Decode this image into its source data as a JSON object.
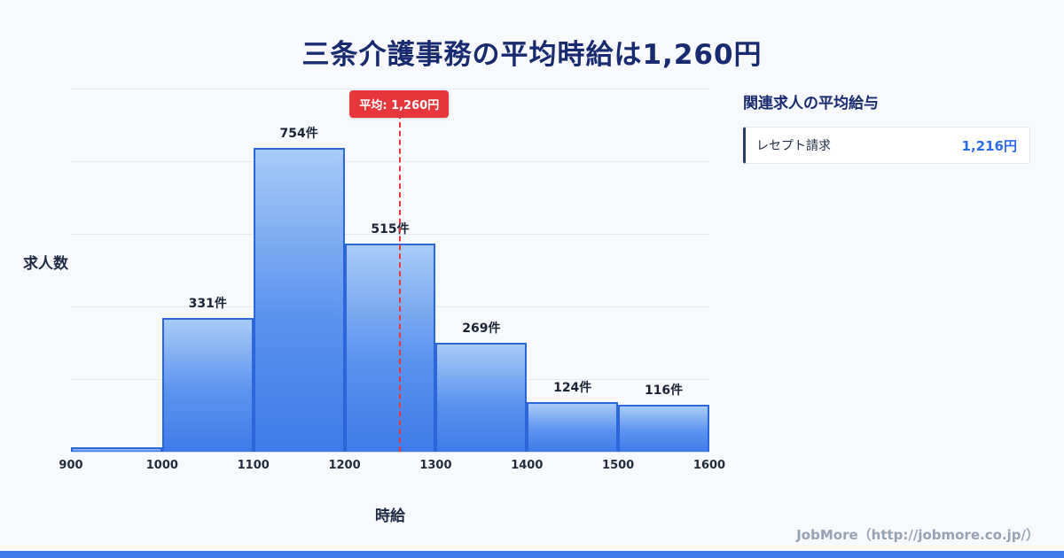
{
  "page": {
    "title": "三条介護事務の平均時給は1,260円",
    "footer": "JobMore（http://jobmore.co.jp/）",
    "accent_color": "#3d7ce8",
    "background_color": "#f7f9fc"
  },
  "chart_data": {
    "type": "bar",
    "title": "三条介護事務の平均時給は1,260円",
    "xlabel": "時給",
    "ylabel": "求人数",
    "bin_edges": [
      900,
      1000,
      1100,
      1200,
      1300,
      1400,
      1500,
      1600
    ],
    "values": [
      10,
      331,
      754,
      515,
      269,
      124,
      116
    ],
    "bar_labels": [
      "",
      "331件",
      "754件",
      "515件",
      "269件",
      "124件",
      "116件"
    ],
    "ylim": [
      0,
      900
    ],
    "grid": true,
    "legend": "none",
    "average_line": {
      "value": 1260,
      "label": "平均: 1,260円",
      "color": "#e8363d"
    },
    "bar_fill_top": "#a9cbf8",
    "bar_fill_bottom": "#3d7ce8",
    "bar_border_color": "#2b66db"
  },
  "side_panel": {
    "heading": "関連求人の平均給与",
    "rows": [
      {
        "label": "レセプト請求",
        "value": "1,216円"
      }
    ],
    "value_color": "#2b6be4"
  }
}
